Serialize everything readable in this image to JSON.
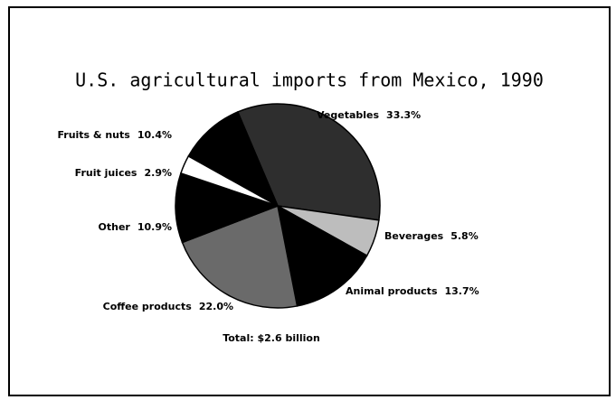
{
  "chart_data": {
    "type": "pie",
    "title": "U.S. agricultural imports from Mexico, 1990",
    "annotation": "Total: $2.6 billion",
    "categories": [
      "Vegetables",
      "Beverages",
      "Animal products",
      "Coffee products",
      "Other",
      "Fruit juices",
      "Fruits & nuts"
    ],
    "values": [
      33.3,
      5.8,
      13.7,
      22.0,
      10.9,
      2.9,
      10.4
    ],
    "value_labels": [
      "33.3%",
      "5.8%",
      "13.7%",
      "22.0%",
      "10.9%",
      "2.9%",
      "10.4%"
    ],
    "colors": [
      "#2e2e2e",
      "#bdbdbd",
      "#000000",
      "#6a6a6a",
      "#000000",
      "#ffffff",
      "#000000"
    ]
  }
}
